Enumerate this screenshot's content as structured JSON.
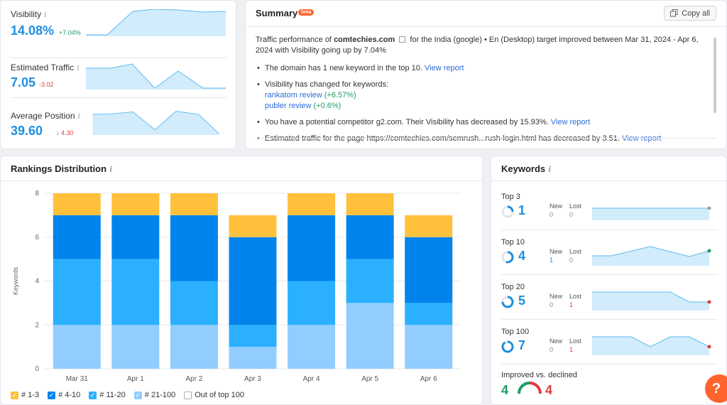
{
  "metrics": [
    {
      "label": "Visibility",
      "value": "14.08%",
      "delta": "+7.04%",
      "direction": "up"
    },
    {
      "label": "Estimated Traffic",
      "value": "7.05",
      "delta": "-3.02",
      "direction": "down"
    },
    {
      "label": "Average Position",
      "value": "39.60",
      "delta": "↓ 4.30",
      "direction": "down"
    }
  ],
  "summary": {
    "title": "Summary",
    "badge": "beta",
    "copy_label": "Copy all",
    "intro_prefix": "Traffic performance of",
    "domain": "comtechies.com",
    "intro_suffix": "for the India (google) • En (Desktop) target improved between Mar 31, 2024 - Apr 6, 2024 with Visibility going up by 7.04%",
    "b1_text": "The domain has 1 new keyword in the top 10.",
    "view_report": "View report",
    "b2_text": "Visibility has changed for keywords:",
    "kw1_name": "rankatom review",
    "kw1_change": "(+6.57%)",
    "kw2_name": "publer review",
    "kw2_change": "(+0.6%)",
    "b3_text": "You have a potential competitor g2.com. Their Visibility has decreased by 15.93%.",
    "b4_text": "Estimated traffic for the page https://comtechies.com/semrush...rush-login.html has decreased by 3.51."
  },
  "rankings": {
    "title": "Rankings Distribution",
    "legend": [
      {
        "label": "# 1-3",
        "color": "#ffc13c",
        "checked": true
      },
      {
        "label": "# 4-10",
        "color": "#0084ec",
        "checked": true
      },
      {
        "label": "# 11-20",
        "color": "#2ab0ff",
        "checked": true
      },
      {
        "label": "# 21-100",
        "color": "#91cdff",
        "checked": true
      },
      {
        "label": "Out of top 100",
        "color": "#ffffff",
        "checked": false
      }
    ]
  },
  "chart_data": {
    "type": "bar",
    "stacked": true,
    "categories": [
      "Mar 31",
      "Apr 1",
      "Apr 2",
      "Apr 3",
      "Apr 4",
      "Apr 5",
      "Apr 6"
    ],
    "series": [
      {
        "name": "# 21-100",
        "color": "#91cdff",
        "values": [
          2,
          2,
          2,
          1,
          2,
          3,
          2
        ]
      },
      {
        "name": "# 11-20",
        "color": "#2ab0ff",
        "values": [
          3,
          3,
          2,
          1,
          2,
          2,
          1
        ]
      },
      {
        "name": "# 4-10",
        "color": "#0084ec",
        "values": [
          2,
          2,
          3,
          4,
          3,
          2,
          3
        ]
      },
      {
        "name": "# 1-3",
        "color": "#ffc13c",
        "values": [
          1,
          1,
          1,
          1,
          1,
          1,
          1
        ]
      }
    ],
    "ylabel": "Keywords",
    "yticks": [
      0,
      2,
      4,
      6,
      8
    ],
    "ylim": [
      0,
      8
    ],
    "grid": true
  },
  "keywords": {
    "title": "Keywords",
    "new_label": "New",
    "lost_label": "Lost",
    "rows": [
      {
        "label": "Top 3",
        "value": "1",
        "new": "0",
        "lost": "0",
        "ring_fraction": 0.25
      },
      {
        "label": "Top 10",
        "value": "4",
        "new": "1",
        "lost": "0",
        "ring_fraction": 0.55
      },
      {
        "label": "Top 20",
        "value": "5",
        "new": "0",
        "lost": "1",
        "ring_fraction": 0.75
      },
      {
        "label": "Top 100",
        "value": "7",
        "new": "0",
        "lost": "1",
        "ring_fraction": 0.9
      }
    ],
    "improved_label": "Improved vs. declined",
    "improved": "4",
    "declined": "4"
  },
  "help": "?"
}
